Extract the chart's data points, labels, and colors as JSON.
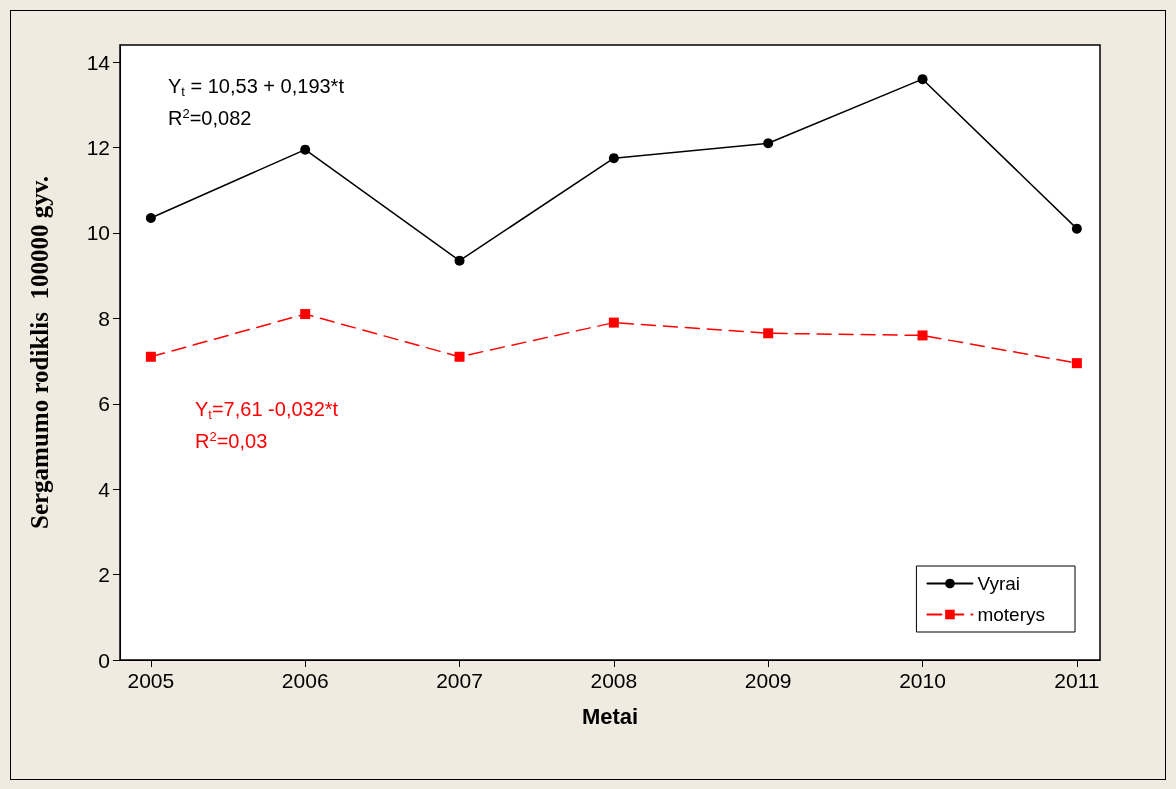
{
  "chart_data": {
    "type": "line",
    "xlabel": "Metai",
    "ylabel": "Sergamumo rodiklis  100000 gyv.",
    "x": [
      2005,
      2006,
      2007,
      2008,
      2009,
      2010,
      2011
    ],
    "series": [
      {
        "name": "Vyrai",
        "color": "#000000",
        "marker": "circle",
        "line_style": "solid",
        "values": [
          10.35,
          11.95,
          9.35,
          11.75,
          12.1,
          13.6,
          10.1
        ]
      },
      {
        "name": "moterys",
        "color": "#ff0000",
        "marker": "square",
        "line_style": "dashed",
        "values": [
          7.1,
          8.1,
          7.1,
          7.9,
          7.65,
          7.6,
          6.95
        ]
      }
    ],
    "xlim": [
      2004.8,
      2011.15
    ],
    "xticks": [
      2005,
      2006,
      2007,
      2008,
      2009,
      2010,
      2011
    ],
    "ylim": [
      0,
      14.4
    ],
    "yticks": [
      0,
      2,
      4,
      6,
      8,
      10,
      12,
      14
    ],
    "annotations": [
      "Y$_{t}$ = 10,53 + 0,193*t\nR$^{2}$=0,082",
      "Y$_{t}$=7,61 -0,032*t\nR$^{2}$=0,03"
    ],
    "grid": false,
    "legend": "bottom right"
  }
}
